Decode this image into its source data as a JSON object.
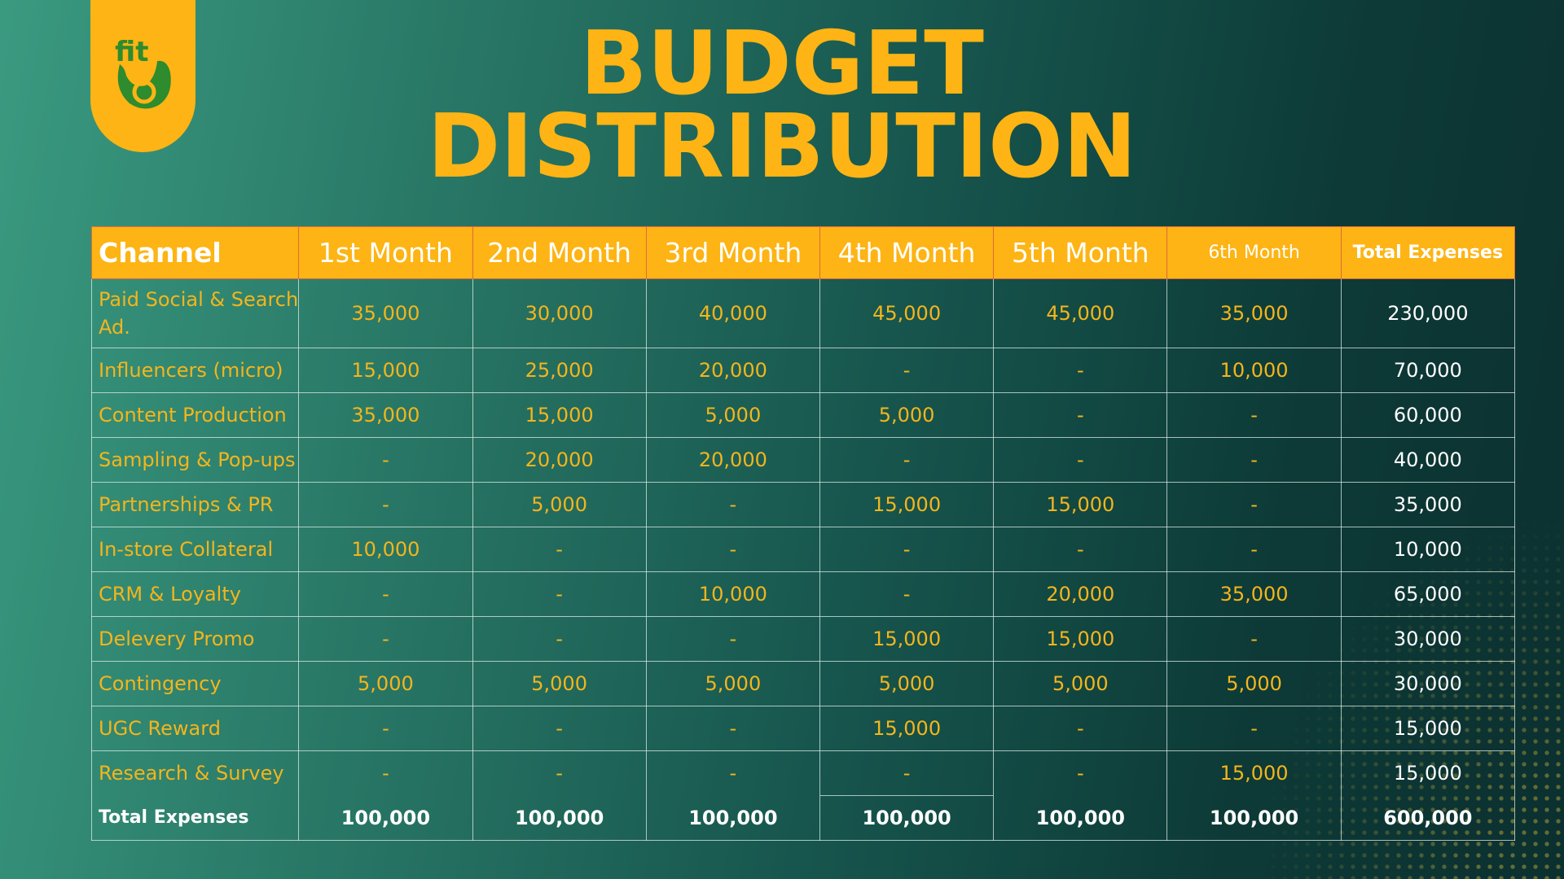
{
  "title": {
    "line1": "BUDGET",
    "line2": "DISTRIBUTION"
  },
  "logo": {
    "name": "fit-logo-icon",
    "text": "fit"
  },
  "colors": {
    "accent": "#fdb414",
    "text_gold": "#f4b51c",
    "bg_dark": "#0b3030",
    "bg_light": "#3a9a80"
  },
  "table": {
    "headers": [
      "Channel",
      "1st Month",
      "2nd Month",
      "3rd Month",
      "4th Month",
      "5th Month",
      "6th Month",
      "Total Expenses"
    ],
    "rows": [
      [
        "Paid Social & Search Ad.",
        "35,000",
        "30,000",
        "40,000",
        "45,000",
        "45,000",
        "35,000",
        "230,000"
      ],
      [
        "Influencers (micro)",
        "15,000",
        "25,000",
        "20,000",
        "-",
        "-",
        "10,000",
        "70,000"
      ],
      [
        "Content Production",
        "35,000",
        "15,000",
        "5,000",
        "5,000",
        "-",
        "-",
        "60,000"
      ],
      [
        "Sampling & Pop-ups",
        "-",
        "20,000",
        "20,000",
        "-",
        "-",
        "-",
        "40,000"
      ],
      [
        "Partnerships & PR",
        "-",
        "5,000",
        "-",
        "15,000",
        "15,000",
        "-",
        "35,000"
      ],
      [
        "In-store Collateral",
        "10,000",
        "-",
        "-",
        "-",
        "-",
        "-",
        "10,000"
      ],
      [
        "CRM & Loyalty",
        "-",
        "-",
        "10,000",
        "-",
        "20,000",
        "35,000",
        "65,000"
      ],
      [
        "Delevery Promo",
        "-",
        "-",
        "-",
        "15,000",
        "15,000",
        "-",
        "30,000"
      ],
      [
        "Contingency",
        "5,000",
        "5,000",
        "5,000",
        "5,000",
        "5,000",
        "5,000",
        "30,000"
      ],
      [
        "UGC Reward",
        "-",
        "-",
        "-",
        "15,000",
        "-",
        "-",
        "15,000"
      ],
      [
        "Research & Survey",
        "-",
        "-",
        "-",
        "-",
        "-",
        "15,000",
        "15,000"
      ]
    ],
    "totals": [
      "Total Expenses",
      "100,000",
      "100,000",
      "100,000",
      "100,000",
      "100,000",
      "100,000",
      "600,000"
    ]
  }
}
